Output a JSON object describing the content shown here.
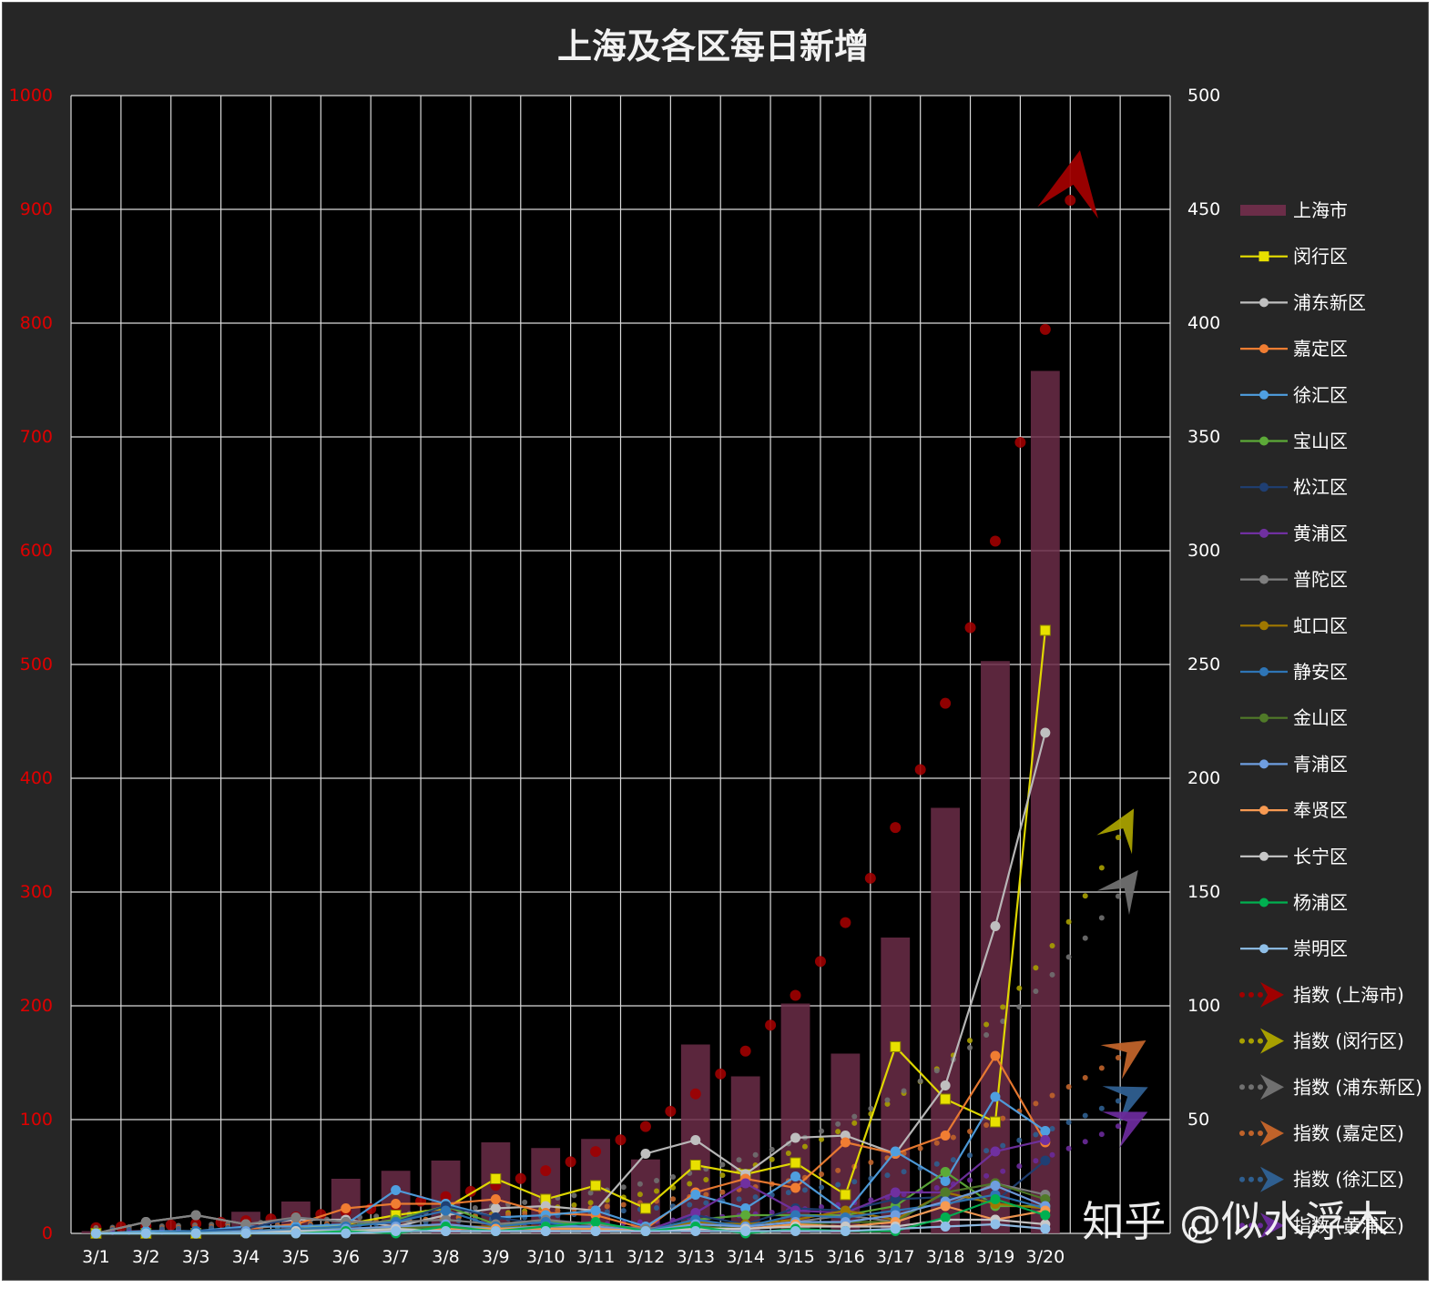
{
  "chart_data": {
    "type": "bar",
    "title": "上海及各区每日新增",
    "categories": [
      "3/1",
      "3/2",
      "3/3",
      "3/4",
      "3/5",
      "3/6",
      "3/7",
      "3/8",
      "3/9",
      "3/10",
      "3/11",
      "3/12",
      "3/13",
      "3/14",
      "3/15",
      "3/16",
      "3/17",
      "3/18",
      "3/19",
      "3/20"
    ],
    "y_left": {
      "range": [
        0,
        1000
      ],
      "ticks": [
        0,
        100,
        200,
        300,
        400,
        500,
        600,
        700,
        800,
        900,
        1000
      ],
      "color": "#e00000"
    },
    "y_right": {
      "range": [
        0,
        500
      ],
      "ticks": [
        0,
        50,
        100,
        150,
        200,
        250,
        300,
        350,
        400,
        450,
        500
      ],
      "color": "#ffffff"
    },
    "grid": true,
    "legend_position": "right",
    "bar_series": {
      "name": "上海市",
      "axis": "left",
      "color": "#6b2d48",
      "values": [
        2,
        3,
        2,
        19,
        28,
        48,
        55,
        64,
        80,
        75,
        83,
        65,
        166,
        138,
        202,
        158,
        260,
        374,
        503,
        758
      ]
    },
    "line_series": [
      {
        "name": "闵行区",
        "axis": "right",
        "color": "#e8e000",
        "marker": "square",
        "values": [
          0,
          0,
          0,
          1,
          2,
          4,
          8,
          11,
          24,
          15,
          21,
          11,
          30,
          26,
          31,
          17,
          82,
          59,
          49,
          265
        ]
      },
      {
        "name": "浦东新区",
        "axis": "right",
        "color": "#bfbfbf",
        "marker": "circle",
        "values": [
          0,
          5,
          8,
          4,
          6,
          6,
          3,
          8,
          11,
          12,
          10,
          35,
          41,
          26,
          42,
          43,
          35,
          65,
          135,
          220
        ]
      },
      {
        "name": "嘉定区",
        "axis": "right",
        "color": "#f07d32",
        "marker": "circle",
        "values": [
          0,
          0,
          1,
          2,
          4,
          11,
          13,
          13,
          15,
          9,
          8,
          2,
          18,
          24,
          20,
          40,
          35,
          43,
          78,
          40
        ]
      },
      {
        "name": "徐汇区",
        "axis": "right",
        "color": "#4f9fe0",
        "marker": "circle",
        "values": [
          0,
          1,
          1,
          3,
          3,
          4,
          19,
          13,
          7,
          8,
          10,
          3,
          17,
          11,
          25,
          9,
          36,
          23,
          60,
          45
        ]
      },
      {
        "name": "宝山区",
        "axis": "right",
        "color": "#5caa38",
        "marker": "circle",
        "values": [
          0,
          0,
          0,
          1,
          1,
          3,
          6,
          12,
          4,
          5,
          4,
          1,
          6,
          8,
          8,
          8,
          12,
          27,
          12,
          12
        ]
      },
      {
        "name": "松江区",
        "axis": "right",
        "color": "#1f3f73",
        "marker": "circle",
        "values": [
          0,
          0,
          1,
          2,
          7,
          5,
          5,
          12,
          7,
          4,
          3,
          1,
          8,
          4,
          11,
          10,
          15,
          16,
          14,
          32
        ]
      },
      {
        "name": "黄浦区",
        "axis": "right",
        "color": "#7030a0",
        "marker": "circle",
        "values": [
          0,
          0,
          0,
          0,
          1,
          2,
          2,
          3,
          2,
          2,
          3,
          1,
          9,
          22,
          10,
          9,
          18,
          18,
          36,
          41
        ]
      },
      {
        "name": "普陀区",
        "axis": "right",
        "color": "#7f7f7f",
        "marker": "circle",
        "values": [
          0,
          5,
          8,
          4,
          7,
          5,
          5,
          6,
          4,
          6,
          4,
          2,
          4,
          3,
          5,
          8,
          5,
          12,
          22,
          17
        ]
      },
      {
        "name": "虹口区",
        "axis": "right",
        "color": "#a07800",
        "marker": "circle",
        "values": [
          0,
          0,
          0,
          0,
          1,
          2,
          3,
          3,
          3,
          3,
          2,
          1,
          5,
          4,
          6,
          10,
          6,
          18,
          13,
          11
        ]
      },
      {
        "name": "静安区",
        "axis": "right",
        "color": "#2e75b6",
        "marker": "circle",
        "values": [
          0,
          0,
          1,
          1,
          2,
          3,
          5,
          10,
          3,
          5,
          2,
          1,
          6,
          3,
          8,
          7,
          10,
          13,
          17,
          11
        ]
      },
      {
        "name": "金山区",
        "axis": "right",
        "color": "#507a28",
        "marker": "circle",
        "values": [
          0,
          0,
          0,
          1,
          1,
          2,
          2,
          3,
          2,
          2,
          2,
          1,
          3,
          2,
          4,
          5,
          5,
          18,
          22,
          15
        ]
      },
      {
        "name": "青浦区",
        "axis": "right",
        "color": "#6f9ee0",
        "marker": "circle",
        "values": [
          0,
          0,
          0,
          1,
          1,
          2,
          3,
          4,
          2,
          3,
          3,
          1,
          4,
          3,
          5,
          5,
          8,
          14,
          21,
          12
        ]
      },
      {
        "name": "奉贤区",
        "axis": "right",
        "color": "#f79a52",
        "marker": "circle",
        "values": [
          0,
          0,
          0,
          0,
          0,
          1,
          1,
          2,
          2,
          2,
          2,
          1,
          2,
          2,
          4,
          3,
          5,
          12,
          6,
          10
        ]
      },
      {
        "name": "长宁区",
        "axis": "right",
        "color": "#c8c8c8",
        "marker": "circle",
        "values": [
          0,
          0,
          0,
          0,
          1,
          1,
          2,
          1,
          1,
          1,
          1,
          1,
          2,
          2,
          3,
          3,
          3,
          6,
          6,
          4
        ]
      },
      {
        "name": "杨浦区",
        "axis": "right",
        "color": "#00b050",
        "marker": "circle",
        "values": [
          0,
          0,
          0,
          0,
          0,
          1,
          0,
          3,
          1,
          3,
          5,
          1,
          3,
          0,
          2,
          1,
          1,
          7,
          15,
          8
        ]
      },
      {
        "name": "崇明区",
        "axis": "right",
        "color": "#8fbfe8",
        "marker": "circle",
        "values": [
          0,
          0,
          0,
          0,
          0,
          0,
          1,
          1,
          1,
          1,
          1,
          1,
          1,
          1,
          1,
          1,
          2,
          3,
          4,
          2
        ]
      }
    ],
    "trend_series": [
      {
        "name": "指数 (上海市)",
        "color": "#a00000"
      },
      {
        "name": "指数 (闵行区)",
        "color": "#a8a000"
      },
      {
        "name": "指数 (浦东新区)",
        "color": "#707070"
      },
      {
        "name": "指数 (嘉定区)",
        "color": "#c0632a"
      },
      {
        "name": "指数 (徐汇区)",
        "color": "#2f5f90"
      },
      {
        "name": "指数 (黄浦区)",
        "color": "#6a2a9a"
      }
    ]
  },
  "watermark": "知乎 @似水浮木"
}
